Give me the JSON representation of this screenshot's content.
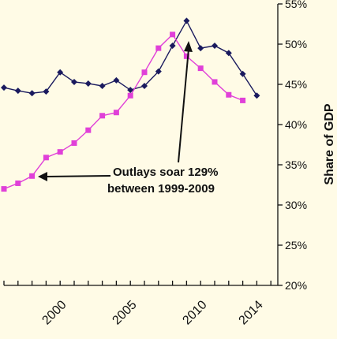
{
  "chart_data": {
    "type": "line",
    "ylabel": "Share of GDP",
    "x": [
      1996,
      1997,
      1998,
      1999,
      2000,
      2001,
      2002,
      2003,
      2004,
      2005,
      2006,
      2007,
      2008,
      2009,
      2010,
      2011,
      2012,
      2013,
      2014,
      2015
    ],
    "x_tick_labels": [
      "2000",
      "2005",
      "2010",
      "2014"
    ],
    "y_tick_labels": [
      "20%",
      "25%",
      "30%",
      "35%",
      "40%",
      "45%",
      "50%",
      "55%"
    ],
    "ylim": [
      20,
      55
    ],
    "grid": false,
    "series": [
      {
        "values": [
          44.6,
          44.2,
          43.9,
          44.1,
          46.5,
          45.3,
          45.1,
          44.8,
          45.5,
          44.3,
          44.8,
          46.6,
          49.8,
          52.9,
          49.5,
          49.8,
          48.9,
          46.3,
          43.6,
          null
        ],
        "color": "#1a1a5e",
        "marker": "diamond"
      },
      {
        "values": [
          32.0,
          32.7,
          33.6,
          35.9,
          36.6,
          37.7,
          39.3,
          41.1,
          41.5,
          43.6,
          46.5,
          49.5,
          51.2,
          48.5,
          47.0,
          45.3,
          43.7,
          43.0,
          null,
          null
        ],
        "color": "#e040d8",
        "marker": "square"
      }
    ],
    "annotations": [
      {
        "line1": "Outlays soar 129%",
        "line2": "between 1999-2009"
      }
    ]
  },
  "colors": {
    "background": "#fffbe6",
    "axis": "#111111"
  }
}
